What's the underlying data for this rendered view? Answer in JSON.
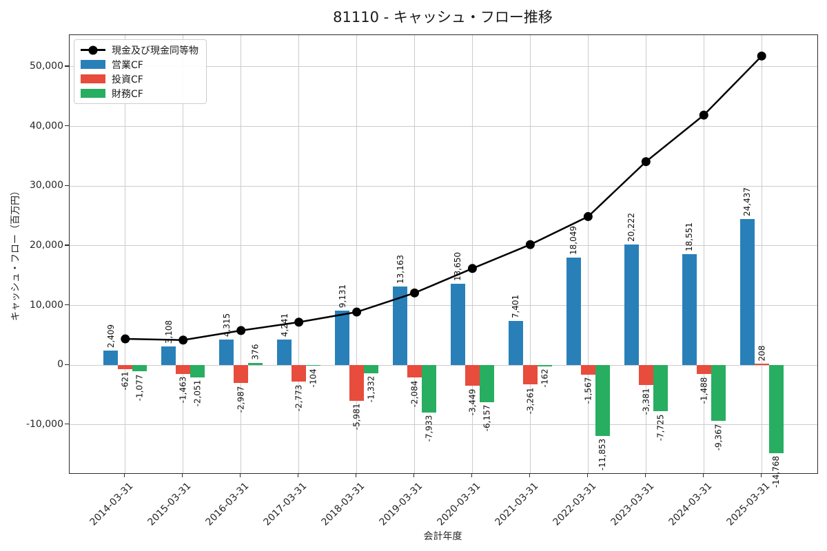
{
  "title": "81110 - キャッシュ・フロー推移",
  "chart_data": {
    "type": "bar",
    "subtype": "grouped-bar-with-line-overlay",
    "title": "81110 - キャッシュ・フロー推移",
    "xlabel": "会計年度",
    "ylabel": "キャッシュ・フロー（百万円）",
    "categories": [
      "2014-03-31",
      "2015-03-31",
      "2016-03-31",
      "2017-03-31",
      "2018-03-31",
      "2019-03-31",
      "2020-03-31",
      "2021-03-31",
      "2022-03-31",
      "2023-03-31",
      "2024-03-31",
      "2025-03-31"
    ],
    "bar_series": [
      {
        "name": "営業CF",
        "color": "#2980b9",
        "values": [
          2409,
          3108,
          4315,
          4241,
          9131,
          13163,
          13650,
          7401,
          18049,
          20222,
          18551,
          24437
        ]
      },
      {
        "name": "投資CF",
        "color": "#e74c3c",
        "values": [
          -621,
          -1463,
          -2987,
          -2773,
          -5981,
          -2084,
          -3449,
          -3261,
          -1567,
          -3381,
          -1488,
          208
        ]
      },
      {
        "name": "財務CF",
        "color": "#27ae60",
        "values": [
          -1077,
          -2051,
          376,
          -104,
          -1332,
          -7933,
          -6157,
          -162,
          -11853,
          -7725,
          -9367,
          -14768
        ]
      }
    ],
    "line_series": {
      "name": "現金及び現金同等物",
      "color": "#000000",
      "marker": "circle",
      "values_estimated": true,
      "values": [
        4400,
        4200,
        5800,
        7200,
        8900,
        12100,
        16200,
        20200,
        24900,
        34100,
        41900,
        51800
      ]
    },
    "y_ticks": [
      -10000,
      0,
      10000,
      20000,
      30000,
      40000,
      50000
    ],
    "ylim": [
      -18100,
      55300
    ],
    "grid": true,
    "legend_position": "upper-left",
    "bar_value_labels": "rotated 90deg, thousands separators"
  }
}
